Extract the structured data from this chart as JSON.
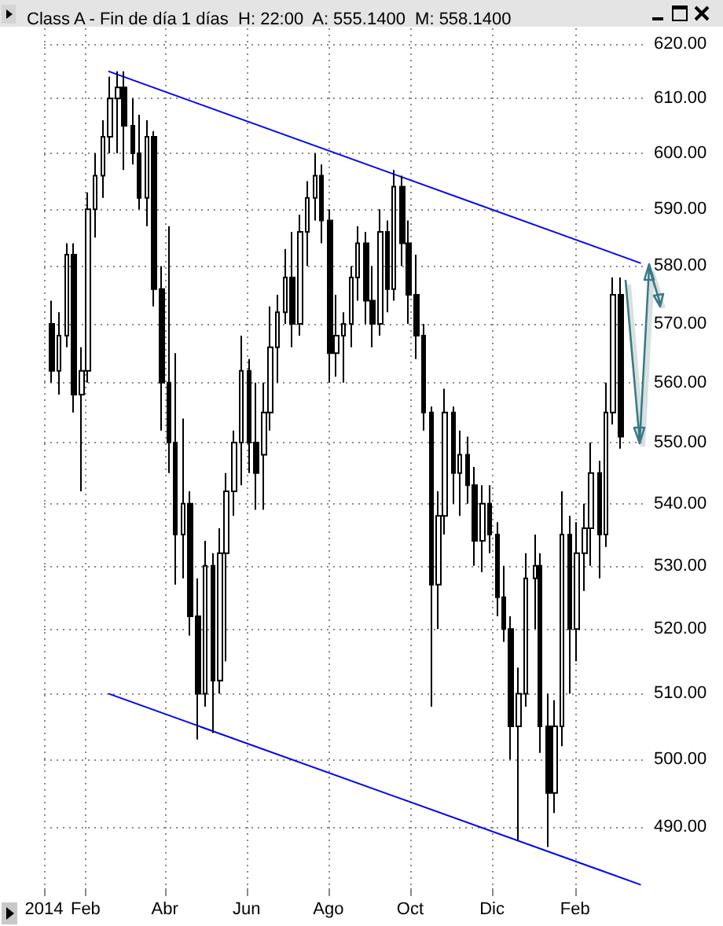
{
  "chart_data": {
    "type": "candlestick",
    "title": "Class A - Fin de día 1 días  H: 22:00  A: 555.1400  M: 558.1400",
    "log": true,
    "grid": true,
    "xlim": [
      "2014-01-01",
      "2015-03-27"
    ],
    "xticks": [
      {
        "value": "2014-01-01",
        "label": "2014"
      },
      {
        "value": "2014-02-01",
        "label": "Feb"
      },
      {
        "value": "2014-04-01",
        "label": "Abr"
      },
      {
        "value": "2014-06-01",
        "label": "Jun"
      },
      {
        "value": "2014-08-01",
        "label": "Ago"
      },
      {
        "value": "2014-10-01",
        "label": "Oct"
      },
      {
        "value": "2014-12-01",
        "label": "Dic"
      },
      {
        "value": "2015-02-01",
        "label": "Feb"
      }
    ],
    "ylim": [
      481,
      623
    ],
    "yticks": [
      {
        "value": 490,
        "label": "490.00"
      },
      {
        "value": 500,
        "label": "500.00"
      },
      {
        "value": 510,
        "label": "510.00"
      },
      {
        "value": 520,
        "label": "520.00"
      },
      {
        "value": 530,
        "label": "530.00"
      },
      {
        "value": 540,
        "label": "540.00"
      },
      {
        "value": 550,
        "label": "550.00"
      },
      {
        "value": 560,
        "label": "560.00"
      },
      {
        "value": 570,
        "label": "570.00"
      },
      {
        "value": 580,
        "label": "580.00"
      },
      {
        "value": 590,
        "label": "590.00"
      },
      {
        "value": 600,
        "label": "600.00"
      },
      {
        "value": 610,
        "label": "610.00"
      },
      {
        "value": 620,
        "label": "620.00"
      }
    ],
    "series": [
      {
        "color": "#000000",
        "x": [
          "2014-01-07",
          "2014-01-12",
          "2014-01-18",
          "2014-01-23",
          "2014-01-29",
          "2014-02-03",
          "2014-02-08",
          "2014-02-14",
          "2014-02-19",
          "2014-02-25",
          "2014-03-02",
          "2014-03-08",
          "2014-03-13",
          "2014-03-19",
          "2014-03-24",
          "2014-03-30",
          "2014-04-04",
          "2014-04-09",
          "2014-04-15",
          "2014-04-20",
          "2014-04-26",
          "2014-05-01",
          "2014-05-07",
          "2014-05-12",
          "2014-05-17",
          "2014-05-23",
          "2014-05-28",
          "2014-06-03",
          "2014-06-08",
          "2014-06-14",
          "2014-06-19",
          "2014-06-24",
          "2014-06-30",
          "2014-07-05",
          "2014-07-11",
          "2014-07-16",
          "2014-07-22",
          "2014-07-27",
          "2014-08-02",
          "2014-08-07",
          "2014-08-12",
          "2014-08-18",
          "2014-08-23",
          "2014-08-29",
          "2014-09-03",
          "2014-09-09",
          "2014-09-14",
          "2014-09-19",
          "2014-09-25",
          "2014-09-30",
          "2014-10-06",
          "2014-10-11",
          "2014-10-17",
          "2014-10-22",
          "2014-10-27",
          "2014-11-02",
          "2014-11-07",
          "2014-11-13",
          "2014-11-18",
          "2014-11-24",
          "2014-11-29",
          "2014-12-05",
          "2014-12-10",
          "2014-12-15",
          "2014-12-21",
          "2014-12-26",
          "2015-01-02",
          "2015-01-06",
          "2015-01-12",
          "2015-01-17",
          "2015-01-22",
          "2015-01-28",
          "2015-02-02",
          "2015-02-08",
          "2015-02-13",
          "2015-02-19",
          "2015-02-24",
          "2015-03-01",
          "2015-03-07"
        ],
        "ohlc": [
          [
            570,
            574,
            560,
            562
          ],
          [
            562,
            572,
            558,
            568
          ],
          [
            568,
            584,
            566,
            582
          ],
          [
            582,
            584,
            555,
            558
          ],
          [
            558,
            566,
            542,
            562
          ],
          [
            562,
            593,
            560,
            590
          ],
          [
            590,
            600,
            585,
            596
          ],
          [
            596,
            606,
            592,
            603
          ],
          [
            603,
            614,
            600,
            610
          ],
          [
            610,
            615,
            600,
            612
          ],
          [
            612,
            615,
            597,
            605
          ],
          [
            605,
            610,
            598,
            600
          ],
          [
            600,
            607,
            590,
            592
          ],
          [
            592,
            606,
            587,
            603
          ],
          [
            603,
            604,
            573,
            576
          ],
          [
            576,
            580,
            552,
            560
          ],
          [
            560,
            587,
            545,
            550
          ],
          [
            550,
            565,
            527,
            535
          ],
          [
            535,
            554,
            528,
            540
          ],
          [
            540,
            542,
            519,
            522
          ],
          [
            522,
            528,
            503,
            510
          ],
          [
            510,
            534,
            508,
            530
          ],
          [
            530,
            532,
            504,
            512
          ],
          [
            512,
            536,
            510,
            532
          ],
          [
            532,
            545,
            515,
            542
          ],
          [
            542,
            552,
            538,
            550
          ],
          [
            550,
            568,
            543,
            562
          ],
          [
            562,
            564,
            545,
            550
          ],
          [
            550,
            560,
            539,
            545
          ],
          [
            548,
            560,
            539,
            555
          ],
          [
            555,
            573,
            552,
            566
          ],
          [
            566,
            575,
            560,
            572
          ],
          [
            572,
            583,
            570,
            578
          ],
          [
            578,
            586,
            566,
            570
          ],
          [
            570,
            589,
            568,
            586
          ],
          [
            586,
            595,
            580,
            592
          ],
          [
            592,
            600,
            588,
            596
          ],
          [
            596,
            598,
            584,
            588
          ],
          [
            588,
            590,
            560,
            565
          ],
          [
            565,
            575,
            561,
            568
          ],
          [
            568,
            572,
            560,
            570
          ],
          [
            570,
            580,
            566,
            578
          ],
          [
            578,
            587,
            574,
            584
          ],
          [
            584,
            586,
            570,
            574
          ],
          [
            574,
            580,
            566,
            570
          ],
          [
            570,
            590,
            568,
            586
          ],
          [
            586,
            588,
            572,
            576
          ],
          [
            576,
            597,
            574,
            594
          ],
          [
            594,
            596,
            580,
            584
          ],
          [
            584,
            588,
            570,
            575
          ],
          [
            575,
            582,
            564,
            568
          ],
          [
            568,
            570,
            552,
            555
          ],
          [
            555,
            556,
            508,
            527
          ],
          [
            527,
            542,
            520,
            538
          ],
          [
            538,
            559,
            535,
            555
          ],
          [
            555,
            556,
            540,
            545
          ],
          [
            545,
            552,
            538,
            548
          ],
          [
            548,
            551,
            540,
            543
          ],
          [
            543,
            546,
            530,
            534
          ],
          [
            534,
            543,
            529,
            540
          ],
          [
            540,
            543,
            532,
            535
          ],
          [
            535,
            537,
            522,
            525
          ],
          [
            525,
            530,
            518,
            520
          ],
          [
            520,
            522,
            500,
            505
          ],
          [
            505,
            514,
            488,
            510
          ],
          [
            510,
            532,
            508,
            528
          ],
          [
            528,
            535,
            520,
            530
          ],
          [
            530,
            532,
            501,
            505
          ],
          [
            505,
            510,
            487,
            495
          ],
          [
            495,
            509,
            492,
            505
          ],
          [
            505,
            542,
            502,
            535
          ],
          [
            535,
            538,
            510,
            520
          ],
          [
            520,
            537,
            515,
            532
          ],
          [
            532,
            540,
            526,
            536
          ],
          [
            536,
            550,
            530,
            545
          ],
          [
            545,
            547,
            528,
            535
          ],
          [
            535,
            560,
            533,
            555
          ],
          [
            555,
            578,
            553,
            575
          ],
          [
            575,
            578,
            549,
            551
          ]
        ]
      },
      {
        "type": "line",
        "color": "#0000ff",
        "x": [
          "2014-02-18",
          "2015-03-22"
        ],
        "values": [
          615,
          580.5
        ]
      },
      {
        "type": "line",
        "color": "#0000ff",
        "x": [
          "2014-02-18",
          "2015-03-22"
        ],
        "values": [
          510,
          481.5
        ]
      }
    ]
  }
}
